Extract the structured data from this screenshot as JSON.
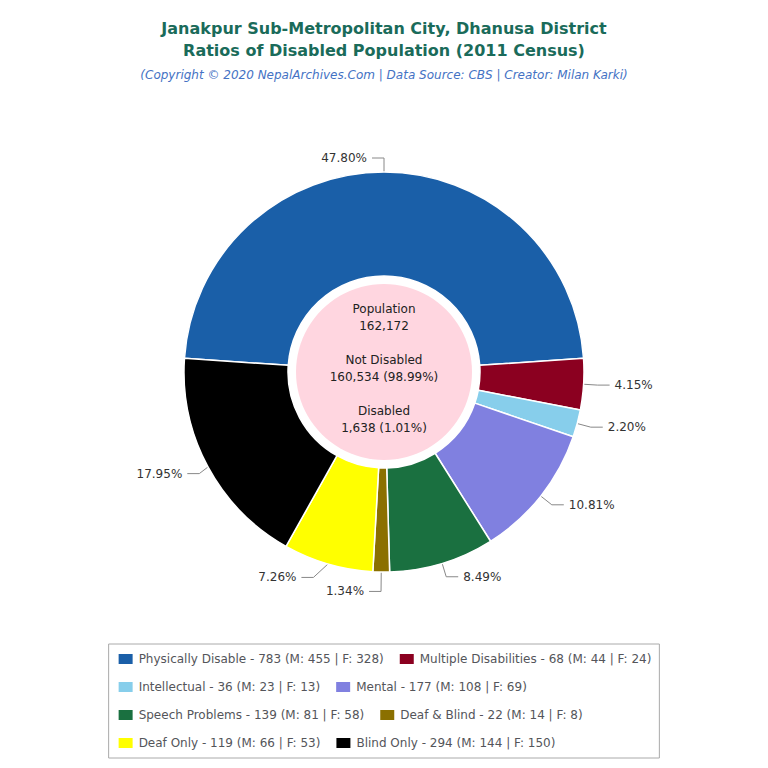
{
  "chart_data": {
    "type": "pie",
    "title": "Janakpur Sub-Metropolitan City, Dhanusa District\nRatios of Disabled Population (2011 Census)",
    "subtitle": "(Copyright © 2020 NepalArchives.Com | Data Source: CBS | Creator: Milan Karki)",
    "categories": [
      "Physically Disable - 783 (M: 455 | F: 328)",
      "Multiple Disabilities - 68 (M: 44 | F: 24)",
      "Intellectual - 36 (M: 23 | F: 13)",
      "Mental - 177 (M: 108 | F: 69)",
      "Speech Problems - 139 (M: 81 | F: 58)",
      "Deaf & Blind - 22 (M: 14 | F: 8)",
      "Deaf Only - 119 (M: 66 | F: 53)",
      "Blind Only - 294 (M: 144 | F: 150)"
    ],
    "values": [
      47.8,
      4.15,
      2.2,
      10.81,
      8.49,
      1.34,
      7.26,
      17.95
    ],
    "value_labels": [
      "47.80%",
      "4.15%",
      "2.20%",
      "10.81%",
      "8.49%",
      "1.34%",
      "7.26%",
      "17.95%"
    ],
    "colors": [
      "#1a5fa8",
      "#8b0020",
      "#87ceeb",
      "#8080e0",
      "#1a7040",
      "#8b7000",
      "#ffff00",
      "#000000"
    ],
    "data_labels": true,
    "annotations": [
      "Population\n162,172\n\nNot Disabled\n160,534 (98.99%)\n\nDisabled\n1,638 (1.01%)"
    ],
    "legend": "bottom"
  }
}
